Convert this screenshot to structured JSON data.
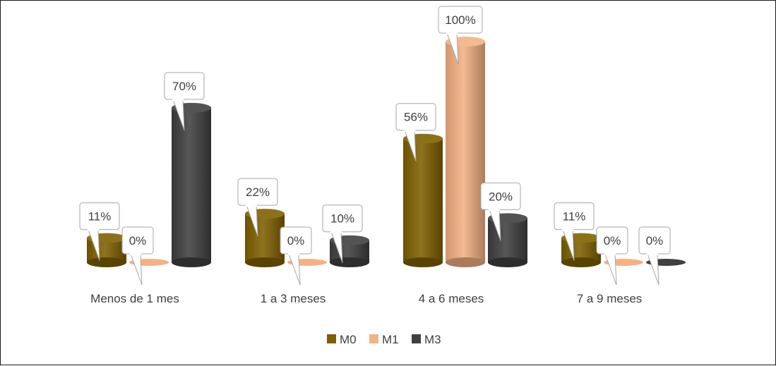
{
  "chart_data": {
    "type": "bar",
    "title": "",
    "xlabel": "",
    "ylabel": "",
    "categories": [
      "Menos de 1 mes",
      "1 a 3 meses",
      "4 a 6 meses",
      "7 a 9 meses"
    ],
    "series": [
      {
        "name": "M0",
        "values": [
          11,
          22,
          56,
          11
        ],
        "color": "#7f6000"
      },
      {
        "name": "M1",
        "values": [
          0,
          0,
          100,
          0
        ],
        "color": "#f4b183"
      },
      {
        "name": "M3",
        "values": [
          70,
          10,
          20,
          0
        ],
        "color": "#404040"
      }
    ],
    "data_labels": [
      [
        "11%",
        "22%",
        "56%",
        "11%"
      ],
      [
        "0%",
        "0%",
        "100%",
        "0%"
      ],
      [
        "70%",
        "10%",
        "20%",
        "0%"
      ]
    ],
    "ylim": [
      0,
      100
    ],
    "value_format": "percent",
    "grid": false,
    "legend_position": "bottom",
    "style": "3d-cylinder"
  }
}
